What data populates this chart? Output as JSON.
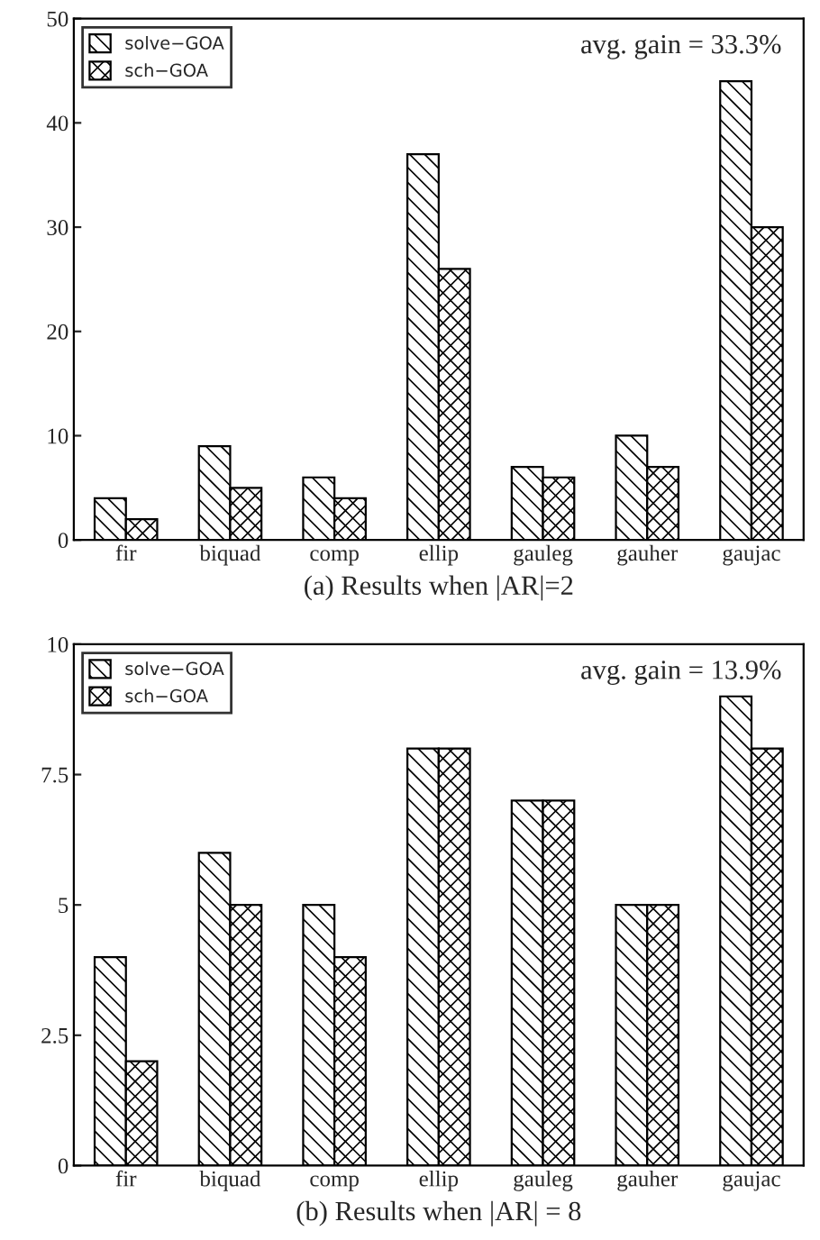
{
  "chart_data": [
    {
      "type": "bar",
      "xlabel": "(a) Results when |AR|=2",
      "categories": [
        "fir",
        "biquad",
        "comp",
        "ellip",
        "gauleg",
        "gauher",
        "gaujac"
      ],
      "series": [
        {
          "name": "solve−GOA",
          "color": "#000000",
          "values": [
            4,
            9,
            6,
            37,
            7,
            10,
            44
          ]
        },
        {
          "name": "sch−GOA",
          "color": "#000000",
          "values": [
            2,
            5,
            4,
            26,
            6,
            7,
            30
          ]
        }
      ],
      "ylim": [
        0,
        50
      ],
      "yticks": [
        0,
        10,
        20,
        30,
        40,
        50
      ],
      "legend": "top left",
      "grid": false,
      "annotations": [
        "avg. gain = 33.3%"
      ]
    },
    {
      "type": "bar",
      "xlabel": "(b) Results when |AR| = 8",
      "categories": [
        "fir",
        "biquad",
        "comp",
        "ellip",
        "gauleg",
        "gauher",
        "gaujac"
      ],
      "series": [
        {
          "name": "solve−GOA",
          "color": "#000000",
          "values": [
            4,
            6,
            5,
            8,
            7,
            5,
            9
          ]
        },
        {
          "name": "sch−GOA",
          "color": "#000000",
          "values": [
            2,
            5,
            4,
            8,
            7,
            5,
            8
          ]
        }
      ],
      "ylim": [
        0,
        10
      ],
      "yticks": [
        0,
        2.5,
        5,
        7.5,
        10
      ],
      "legend": "top left",
      "grid": false,
      "annotations": [
        "avg. gain = 13.9%"
      ]
    }
  ]
}
